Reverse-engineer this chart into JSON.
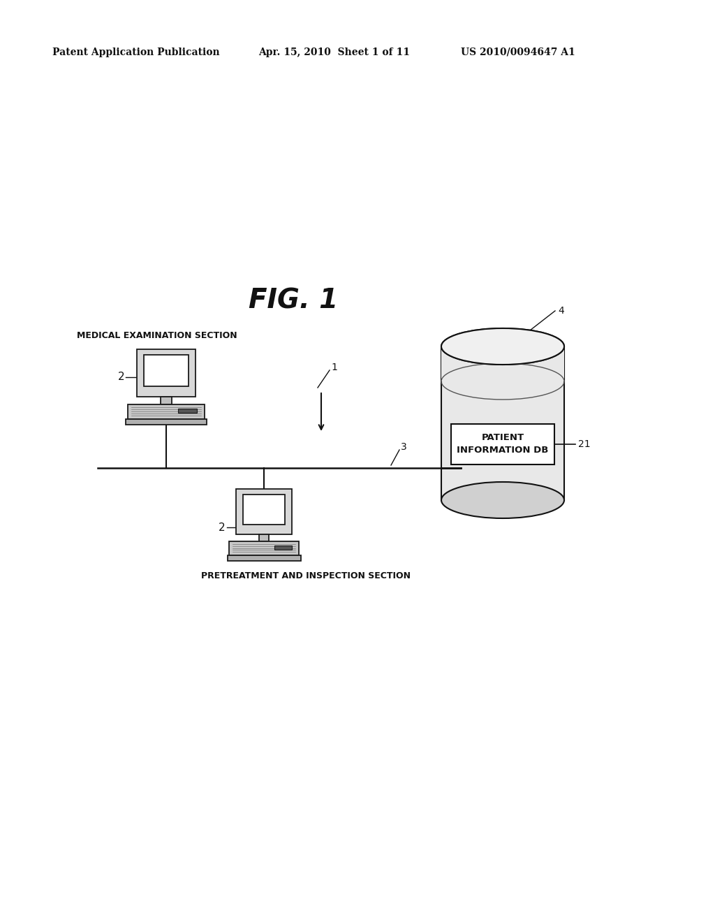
{
  "bg_color": "#ffffff",
  "header_left": "Patent Application Publication",
  "header_mid": "Apr. 15, 2010  Sheet 1 of 11",
  "header_right": "US 2010/0094647 A1",
  "fig_title": "FIG. 1",
  "label_medical": "MEDICAL EXAMINATION SECTION",
  "label_pretreatment": "PRETREATMENT AND INSPECTION SECTION",
  "label_patient_db_line1": "PATIENT",
  "label_patient_db_line2": "INFORMATION DB",
  "num_1": "1",
  "num_2_top": "2",
  "num_2_bot": "2",
  "num_3": "3",
  "num_4": "4",
  "num_21": "21"
}
